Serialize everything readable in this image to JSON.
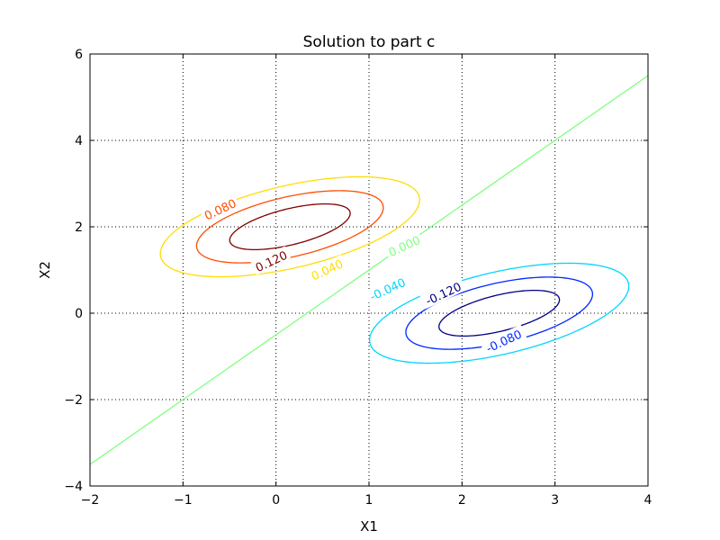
{
  "chart_data": {
    "type": "contour",
    "title": "Solution to part c",
    "xlabel": "X1",
    "ylabel": "X2",
    "xlim": [
      -2,
      4
    ],
    "ylim": [
      -4,
      6
    ],
    "xticks": [
      -2,
      -1,
      0,
      1,
      2,
      3,
      4
    ],
    "yticks": [
      -4,
      -2,
      0,
      2,
      4,
      6
    ],
    "xtick_labels": [
      "−2",
      "−1",
      "0",
      "1",
      "2",
      "3",
      "4"
    ],
    "ytick_labels": [
      "−4",
      "−2",
      "0",
      "2",
      "4",
      "6"
    ],
    "grid": true,
    "grid_style": "dotted",
    "boundary": {
      "level": "0.000",
      "color": "#80ff80",
      "x": [
        -2,
        4
      ],
      "y": [
        -3.5,
        5.5
      ]
    },
    "contours": [
      {
        "level": "0.040",
        "color": "#ffdd00",
        "center": [
          0.15,
          2.0
        ],
        "a": 1.6,
        "b": 0.85,
        "angle_deg": 35.4
      },
      {
        "level": "0.080",
        "color": "#ff4e00",
        "center": [
          0.15,
          2.0
        ],
        "a": 1.15,
        "b": 0.62,
        "angle_deg": 35.4
      },
      {
        "level": "0.120",
        "color": "#800000",
        "center": [
          0.15,
          2.0
        ],
        "a": 0.75,
        "b": 0.37,
        "angle_deg": 35.4
      },
      {
        "level": "-0.040",
        "color": "#00d5ff",
        "center": [
          2.4,
          0.0
        ],
        "a": 1.6,
        "b": 0.85,
        "angle_deg": 35.4
      },
      {
        "level": "-0.080",
        "color": "#0028ff",
        "center": [
          2.4,
          0.0
        ],
        "a": 1.15,
        "b": 0.62,
        "angle_deg": 35.4
      },
      {
        "level": "-0.120",
        "color": "#000080",
        "center": [
          2.4,
          0.0
        ],
        "a": 0.75,
        "b": 0.37,
        "angle_deg": 35.4
      }
    ],
    "contour_labels": [
      {
        "text": "0.080",
        "color": "#ff4e00",
        "x": -0.6,
        "y": 2.4
      },
      {
        "text": "0.120",
        "color": "#800000",
        "x": -0.05,
        "y": 1.2
      },
      {
        "text": "0.040",
        "color": "#ffdd00",
        "x": 0.55,
        "y": 1.0
      },
      {
        "text": "0.000",
        "color": "#80ff80",
        "x": 1.38,
        "y": 1.55
      },
      {
        "text": "-0.040",
        "color": "#00d5ff",
        "x": 1.2,
        "y": 0.55
      },
      {
        "text": "-0.120",
        "color": "#000080",
        "x": 1.8,
        "y": 0.45
      },
      {
        "text": "-0.080",
        "color": "#0028ff",
        "x": 2.45,
        "y": -0.65
      }
    ]
  }
}
